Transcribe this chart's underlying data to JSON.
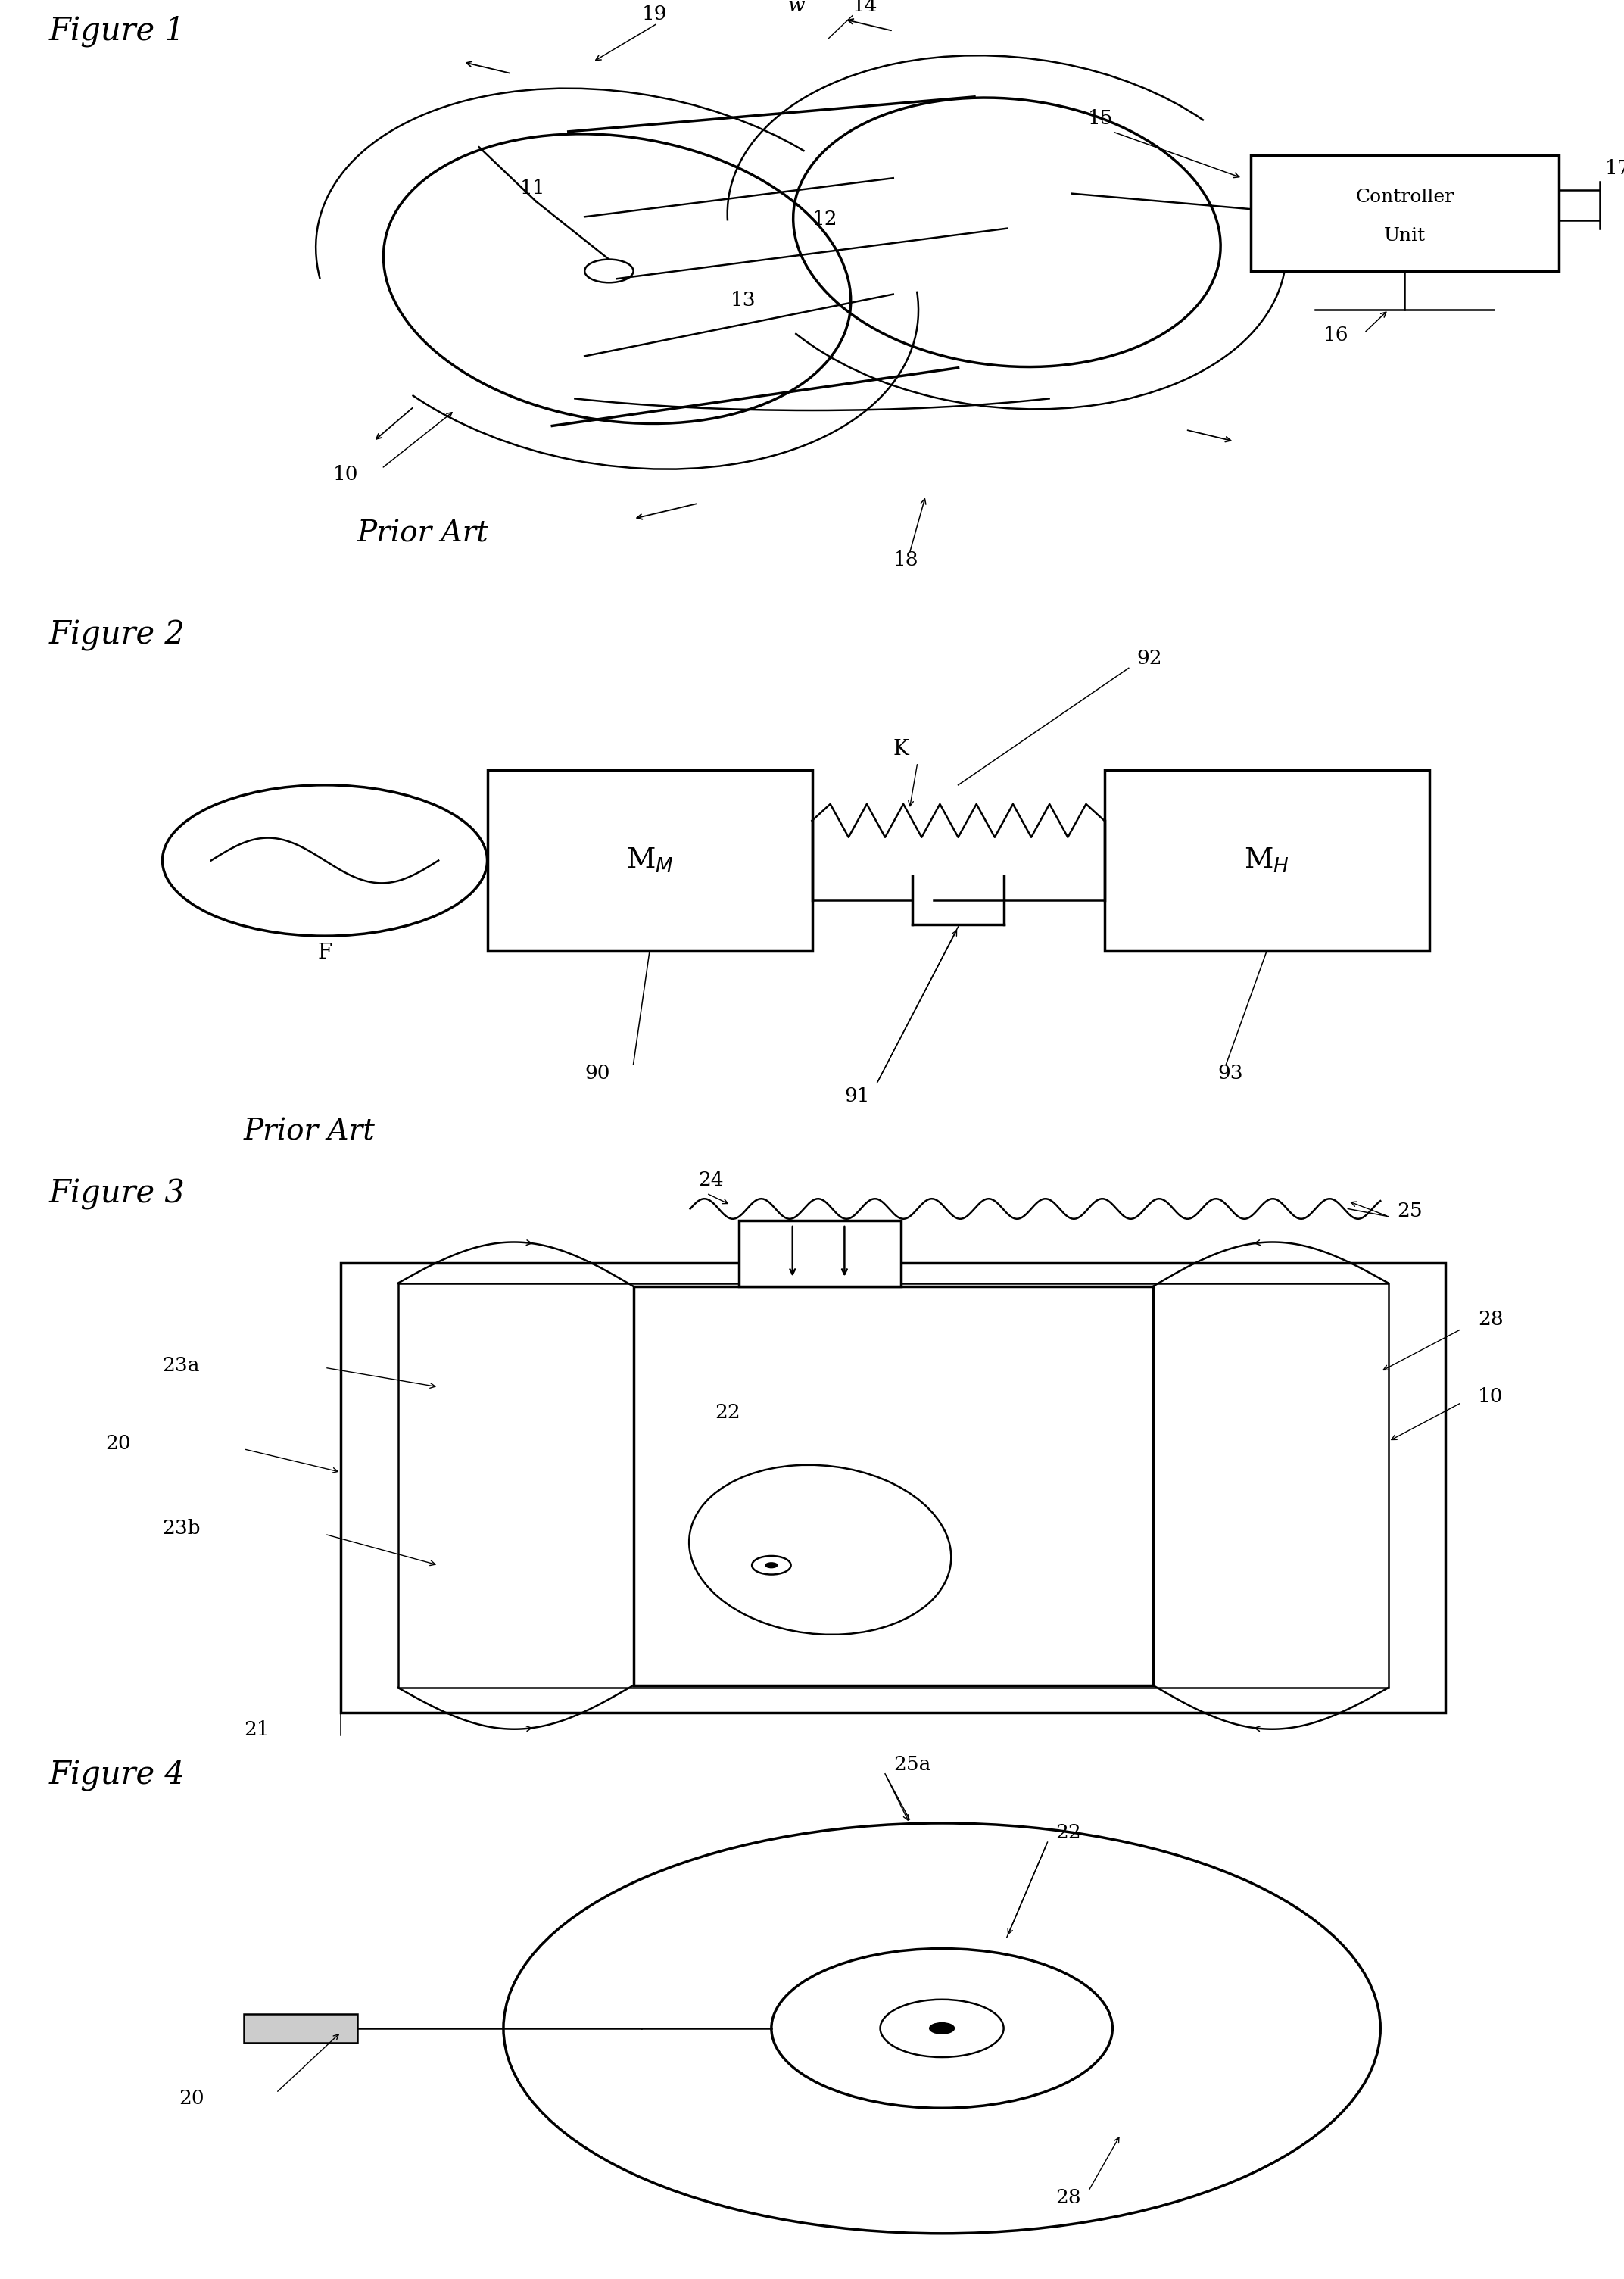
{
  "bg_color": "#ffffff",
  "lw": 1.8,
  "lw_thick": 2.5,
  "fs_title": 30,
  "fs_ref": 19,
  "figures": [
    "Figure 1",
    "Figure 2",
    "Figure 3",
    "Figure 4"
  ],
  "prior_art": "Prior Art"
}
